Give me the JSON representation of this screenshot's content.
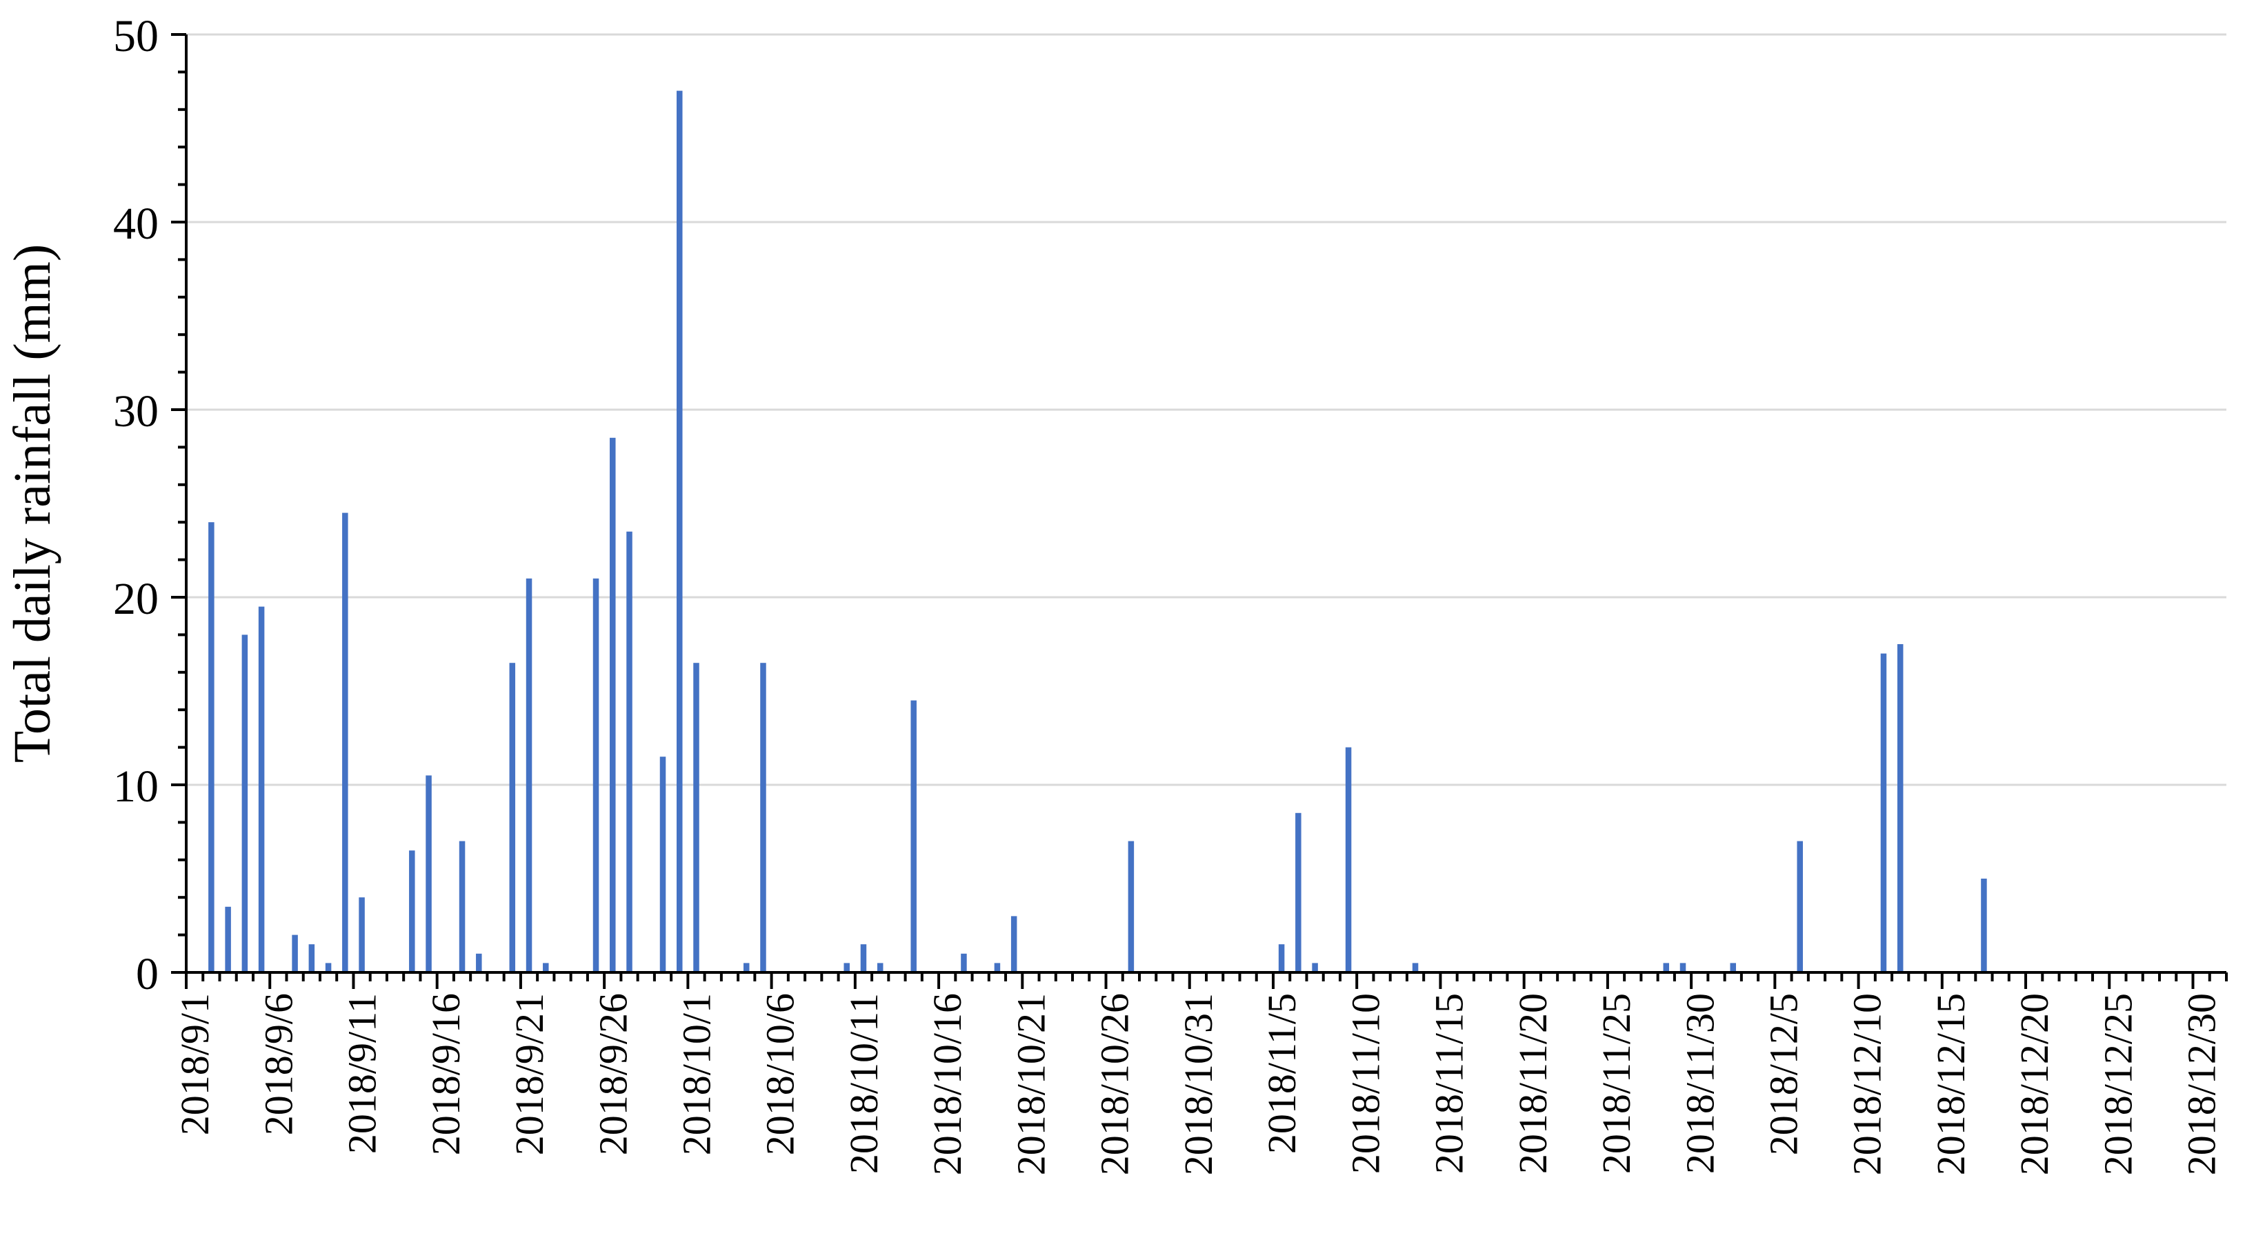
{
  "chart_data": {
    "type": "bar",
    "title": "",
    "xlabel": "",
    "ylabel": "Total daily rainfall (mm)",
    "ylim": [
      0,
      50
    ],
    "yticks": [
      0,
      10,
      20,
      30,
      40,
      50
    ],
    "grid": "horizontal",
    "colors": {
      "bar": "#4472C4",
      "grid": "#D9D9D9",
      "axis": "#000000"
    },
    "x_start": "2018/9/1",
    "x_end": "2018/12/31",
    "x_tick_labels": [
      "2018/9/1",
      "2018/9/6",
      "2018/9/11",
      "2018/9/16",
      "2018/9/21",
      "2018/9/26",
      "2018/10/1",
      "2018/10/6",
      "2018/10/11",
      "2018/10/16",
      "2018/10/21",
      "2018/10/26",
      "2018/10/31",
      "2018/11/5",
      "2018/11/10",
      "2018/11/15",
      "2018/11/20",
      "2018/11/25",
      "2018/11/30",
      "2018/12/5",
      "2018/12/10",
      "2018/12/15",
      "2018/12/20",
      "2018/12/25",
      "2018/12/30"
    ],
    "points": [
      {
        "date": "2018/9/2",
        "value": 24
      },
      {
        "date": "2018/9/3",
        "value": 3.5
      },
      {
        "date": "2018/9/4",
        "value": 18
      },
      {
        "date": "2018/9/5",
        "value": 19.5
      },
      {
        "date": "2018/9/7",
        "value": 2
      },
      {
        "date": "2018/9/8",
        "value": 1.5
      },
      {
        "date": "2018/9/9",
        "value": 0.5
      },
      {
        "date": "2018/9/10",
        "value": 24.5
      },
      {
        "date": "2018/9/11",
        "value": 4
      },
      {
        "date": "2018/9/14",
        "value": 6.5
      },
      {
        "date": "2018/9/15",
        "value": 10.5
      },
      {
        "date": "2018/9/17",
        "value": 7
      },
      {
        "date": "2018/9/18",
        "value": 1
      },
      {
        "date": "2018/9/20",
        "value": 16.5
      },
      {
        "date": "2018/9/21",
        "value": 21
      },
      {
        "date": "2018/9/22",
        "value": 0.5
      },
      {
        "date": "2018/9/25",
        "value": 21
      },
      {
        "date": "2018/9/26",
        "value": 28.5
      },
      {
        "date": "2018/9/27",
        "value": 23.5
      },
      {
        "date": "2018/9/29",
        "value": 11.5
      },
      {
        "date": "2018/9/30",
        "value": 47
      },
      {
        "date": "2018/10/1",
        "value": 16.5
      },
      {
        "date": "2018/10/4",
        "value": 0.5
      },
      {
        "date": "2018/10/5",
        "value": 16.5
      },
      {
        "date": "2018/10/10",
        "value": 0.5
      },
      {
        "date": "2018/10/11",
        "value": 1.5
      },
      {
        "date": "2018/10/12",
        "value": 0.5
      },
      {
        "date": "2018/10/14",
        "value": 14.5
      },
      {
        "date": "2018/10/17",
        "value": 1
      },
      {
        "date": "2018/10/19",
        "value": 0.5
      },
      {
        "date": "2018/10/20",
        "value": 3
      },
      {
        "date": "2018/10/27",
        "value": 7
      },
      {
        "date": "2018/11/5",
        "value": 1.5
      },
      {
        "date": "2018/11/6",
        "value": 8.5
      },
      {
        "date": "2018/11/7",
        "value": 0.5
      },
      {
        "date": "2018/11/9",
        "value": 12
      },
      {
        "date": "2018/11/13",
        "value": 0.5
      },
      {
        "date": "2018/11/28",
        "value": 0.5
      },
      {
        "date": "2018/11/29",
        "value": 0.5
      },
      {
        "date": "2018/12/2",
        "value": 0.5
      },
      {
        "date": "2018/12/6",
        "value": 7
      },
      {
        "date": "2018/12/11",
        "value": 17
      },
      {
        "date": "2018/12/12",
        "value": 17.5
      },
      {
        "date": "2018/12/17",
        "value": 5
      }
    ]
  }
}
